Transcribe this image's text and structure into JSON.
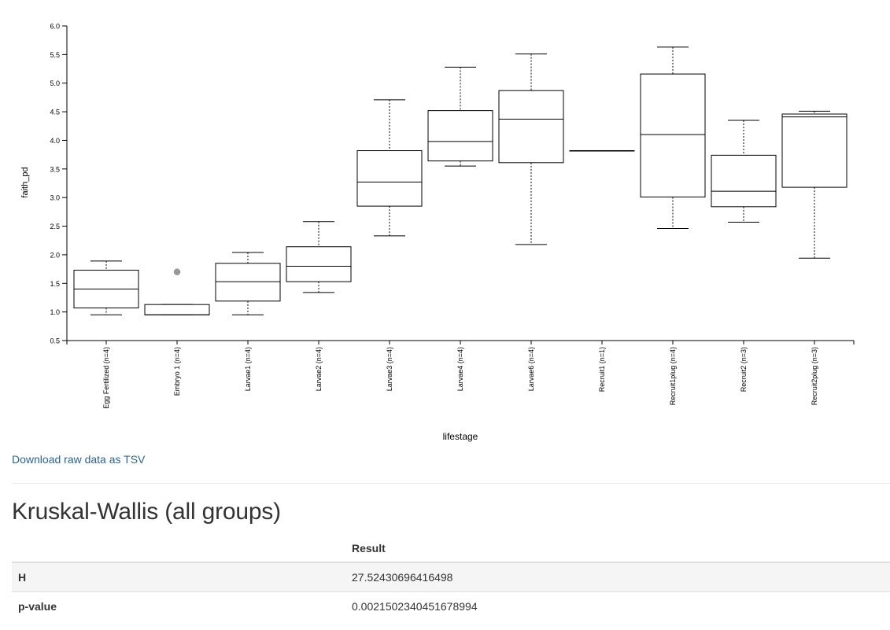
{
  "chart_data": {
    "type": "boxplot",
    "xlabel": "lifestage",
    "ylabel": "faith_pd",
    "ylim": [
      0.5,
      6.0
    ],
    "yticks": [
      "0.5",
      "1.0",
      "1.5",
      "2.0",
      "2.5",
      "3.0",
      "3.5",
      "4.0",
      "4.5",
      "5.0",
      "5.5",
      "6.0"
    ],
    "grid": false,
    "categories": [
      "Egg Fertilized (n=4)",
      "Embryo 1 (n=4)",
      "Larvae1 (n=4)",
      "Larvae2 (n=4)",
      "Larvae3 (n=4)",
      "Larvae4 (n=4)",
      "Larvae6 (n=4)",
      "Recruit1 (n=1)",
      "Recruit1plug (n=4)",
      "Recruit2 (n=3)",
      "Recruit2plug (n=3)"
    ],
    "boxes": [
      {
        "whislo": 0.95,
        "q1": 1.07,
        "med": 1.4,
        "q3": 1.73,
        "whishi": 1.89,
        "fliers": []
      },
      {
        "whislo": 0.95,
        "q1": 0.95,
        "med": 0.95,
        "q3": 1.13,
        "whishi": 1.13,
        "fliers": [
          1.7
        ]
      },
      {
        "whislo": 0.95,
        "q1": 1.19,
        "med": 1.53,
        "q3": 1.85,
        "whishi": 2.04,
        "fliers": []
      },
      {
        "whislo": 1.34,
        "q1": 1.53,
        "med": 1.8,
        "q3": 2.14,
        "whishi": 2.58,
        "fliers": []
      },
      {
        "whislo": 2.33,
        "q1": 2.85,
        "med": 3.27,
        "q3": 3.82,
        "whishi": 4.71,
        "fliers": []
      },
      {
        "whislo": 3.55,
        "q1": 3.64,
        "med": 3.98,
        "q3": 4.52,
        "whishi": 5.28,
        "fliers": []
      },
      {
        "whislo": 2.18,
        "q1": 3.61,
        "med": 4.37,
        "q3": 4.87,
        "whishi": 5.51,
        "fliers": []
      },
      {
        "whislo": 3.82,
        "q1": 3.82,
        "med": 3.82,
        "q3": 3.82,
        "whishi": 3.82,
        "fliers": []
      },
      {
        "whislo": 2.46,
        "q1": 3.01,
        "med": 4.1,
        "q3": 5.16,
        "whishi": 5.63,
        "fliers": []
      },
      {
        "whislo": 2.57,
        "q1": 2.84,
        "med": 3.11,
        "q3": 3.74,
        "whishi": 4.35,
        "fliers": []
      },
      {
        "whislo": 1.94,
        "q1": 3.18,
        "med": 4.41,
        "q3": 4.46,
        "whishi": 4.51,
        "fliers": []
      }
    ],
    "colors": {
      "box_stroke": "#000000",
      "box_fill": "#ffffff",
      "flier": "#999999"
    }
  },
  "links": {
    "download": "Download raw data as TSV"
  },
  "kruskal": {
    "title": "Kruskal-Wallis (all groups)",
    "header": [
      "",
      "Result"
    ],
    "rows": [
      {
        "key": "H",
        "value": "27.52430696416498"
      },
      {
        "key": "p-value",
        "value": "0.0021502340451678994"
      }
    ]
  },
  "colors": {
    "link": "#2a6496",
    "row_stripe": "#f5f5f5"
  }
}
